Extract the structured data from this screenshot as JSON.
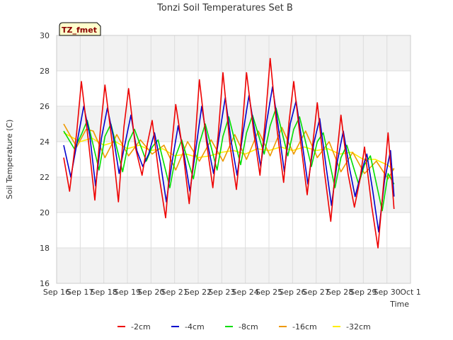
{
  "chart_data": {
    "type": "line",
    "title": "Tonzi Soil Temperatures Set B",
    "xlabel": "Time",
    "ylabel": "Soil Temperature (C)",
    "badge": "TZ_fmet",
    "ylim": [
      16,
      30
    ],
    "yticks": [
      16,
      18,
      20,
      22,
      24,
      26,
      28,
      30
    ],
    "xlim": [
      0,
      15
    ],
    "xticks": [
      {
        "value": 0,
        "label": "Sep 16"
      },
      {
        "value": 1,
        "label": "Sep 17"
      },
      {
        "value": 2,
        "label": "Sep 18"
      },
      {
        "value": 3,
        "label": "Sep 19"
      },
      {
        "value": 4,
        "label": "Sep 20"
      },
      {
        "value": 5,
        "label": "Sep 21"
      },
      {
        "value": 6,
        "label": "Sep 22"
      },
      {
        "value": 7,
        "label": "Sep 23"
      },
      {
        "value": 8,
        "label": "Sep 24"
      },
      {
        "value": 9,
        "label": "Sep 25"
      },
      {
        "value": 10,
        "label": "Sep 26"
      },
      {
        "value": 11,
        "label": "Sep 27"
      },
      {
        "value": 12,
        "label": "Sep 28"
      },
      {
        "value": 13,
        "label": "Sep 29"
      },
      {
        "value": 14,
        "label": "Sep 30"
      },
      {
        "value": 15,
        "label": "Oct 1"
      }
    ],
    "grid": true,
    "legend_position": "bottom",
    "series": [
      {
        "name": "-2cm",
        "color": "#ee0000",
        "x": [
          0.3,
          0.55,
          0.85,
          1.05,
          1.35,
          1.62,
          1.85,
          2.05,
          2.35,
          2.62,
          2.85,
          3.05,
          3.35,
          3.62,
          3.85,
          4.05,
          4.35,
          4.62,
          4.85,
          5.05,
          5.35,
          5.62,
          5.85,
          6.05,
          6.35,
          6.62,
          6.85,
          7.05,
          7.35,
          7.62,
          7.85,
          8.05,
          8.35,
          8.62,
          8.85,
          9.05,
          9.35,
          9.62,
          9.85,
          10.05,
          10.35,
          10.62,
          10.85,
          11.05,
          11.35,
          11.62,
          11.85,
          12.05,
          12.35,
          12.62,
          12.85,
          13.05,
          13.35,
          13.62,
          13.85,
          14.05,
          14.3
        ],
        "y": [
          23.1,
          21.2,
          24.5,
          27.4,
          24.0,
          20.7,
          24.6,
          27.2,
          24.0,
          20.6,
          24.8,
          27.0,
          23.6,
          22.1,
          23.9,
          25.2,
          22.0,
          19.7,
          23.4,
          26.1,
          23.5,
          20.5,
          23.7,
          27.5,
          24.0,
          21.4,
          24.4,
          27.9,
          23.8,
          21.3,
          24.5,
          27.9,
          24.6,
          22.1,
          25.3,
          28.7,
          24.6,
          21.7,
          25.1,
          27.4,
          23.9,
          21.0,
          23.8,
          26.2,
          22.3,
          19.5,
          22.9,
          25.5,
          22.2,
          20.3,
          21.8,
          23.7,
          20.4,
          18.0,
          21.5,
          24.5,
          20.2
        ]
      },
      {
        "name": "-4cm",
        "color": "#0000cc",
        "x": [
          0.3,
          0.6,
          0.9,
          1.15,
          1.4,
          1.65,
          1.9,
          2.15,
          2.4,
          2.65,
          2.9,
          3.15,
          3.4,
          3.65,
          3.9,
          4.15,
          4.4,
          4.65,
          4.9,
          5.15,
          5.4,
          5.65,
          5.9,
          6.15,
          6.4,
          6.65,
          6.9,
          7.15,
          7.4,
          7.65,
          7.9,
          8.15,
          8.4,
          8.65,
          8.9,
          9.15,
          9.4,
          9.65,
          9.9,
          10.15,
          10.4,
          10.65,
          10.9,
          11.15,
          11.4,
          11.65,
          11.9,
          12.15,
          12.4,
          12.65,
          12.9,
          13.15,
          13.4,
          13.65,
          13.9,
          14.15,
          14.3
        ],
        "y": [
          23.8,
          22.0,
          24.2,
          26.0,
          24.4,
          21.5,
          24.2,
          25.9,
          24.3,
          22.2,
          23.9,
          25.5,
          23.5,
          22.6,
          23.3,
          24.5,
          22.8,
          20.6,
          22.9,
          24.9,
          23.3,
          21.2,
          23.6,
          26.0,
          23.9,
          22.2,
          24.4,
          26.5,
          24.0,
          22.1,
          24.5,
          26.6,
          24.6,
          22.6,
          25.1,
          27.1,
          24.8,
          22.3,
          25.0,
          26.3,
          24.0,
          21.6,
          23.9,
          25.3,
          22.8,
          20.4,
          22.9,
          24.6,
          22.6,
          20.9,
          22.2,
          23.3,
          21.2,
          18.9,
          21.8,
          23.5,
          20.9
        ]
      },
      {
        "name": "-8cm",
        "color": "#00dd00",
        "x": [
          0.3,
          0.75,
          1.05,
          1.3,
          1.8,
          2.05,
          2.3,
          2.8,
          3.05,
          3.3,
          3.8,
          4.05,
          4.3,
          4.8,
          5.05,
          5.3,
          5.8,
          6.05,
          6.3,
          6.8,
          7.05,
          7.3,
          7.8,
          8.05,
          8.3,
          8.8,
          9.05,
          9.3,
          9.8,
          10.05,
          10.3,
          10.8,
          11.05,
          11.3,
          11.8,
          12.05,
          12.3,
          12.8,
          13.05,
          13.3,
          13.8,
          14.05,
          14.3
        ],
        "y": [
          24.6,
          23.6,
          24.4,
          25.2,
          22.4,
          24.3,
          25.0,
          22.3,
          24.0,
          24.7,
          22.9,
          23.7,
          24.1,
          21.4,
          23.2,
          24.1,
          21.9,
          23.9,
          25.0,
          22.4,
          24.3,
          25.4,
          22.7,
          24.5,
          25.5,
          23.3,
          24.9,
          25.9,
          23.2,
          24.7,
          25.4,
          22.6,
          24.0,
          24.5,
          21.4,
          23.1,
          23.8,
          21.6,
          22.7,
          23.2,
          20.1,
          22.2,
          21.6
        ]
      },
      {
        "name": "-16cm",
        "color": "#ee9900",
        "x": [
          0.3,
          0.85,
          1.25,
          1.55,
          2.05,
          2.55,
          3.05,
          3.55,
          4.05,
          4.55,
          5.05,
          5.55,
          6.05,
          6.55,
          7.05,
          7.55,
          8.05,
          8.55,
          9.05,
          9.55,
          10.05,
          10.55,
          11.05,
          11.55,
          12.05,
          12.55,
          13.05,
          13.55,
          14.05,
          14.3
        ],
        "y": [
          25.0,
          23.7,
          24.7,
          24.6,
          23.1,
          24.4,
          23.2,
          24.1,
          23.3,
          23.8,
          22.4,
          24.0,
          22.9,
          24.1,
          22.9,
          24.4,
          23.0,
          24.6,
          23.2,
          24.8,
          23.3,
          24.6,
          23.1,
          24.0,
          22.3,
          23.4,
          22.2,
          22.9,
          21.9,
          22.5
        ]
      },
      {
        "name": "-32cm",
        "color": "#ffee00",
        "x": [
          0.3,
          1.0,
          1.5,
          2.0,
          2.5,
          3.0,
          3.5,
          4.0,
          4.5,
          5.0,
          5.5,
          6.0,
          6.5,
          7.0,
          7.5,
          8.0,
          8.5,
          9.0,
          9.5,
          10.0,
          10.5,
          11.0,
          11.5,
          12.0,
          12.5,
          13.0,
          13.5,
          14.0,
          14.3
        ],
        "y": [
          24.5,
          24.0,
          24.2,
          23.8,
          24.0,
          23.6,
          23.8,
          23.5,
          23.6,
          23.2,
          23.3,
          23.1,
          23.2,
          23.4,
          23.5,
          23.3,
          23.6,
          23.5,
          23.7,
          23.5,
          23.7,
          23.5,
          23.6,
          23.3,
          23.4,
          23.0,
          23.0,
          22.7,
          22.4
        ]
      }
    ]
  }
}
